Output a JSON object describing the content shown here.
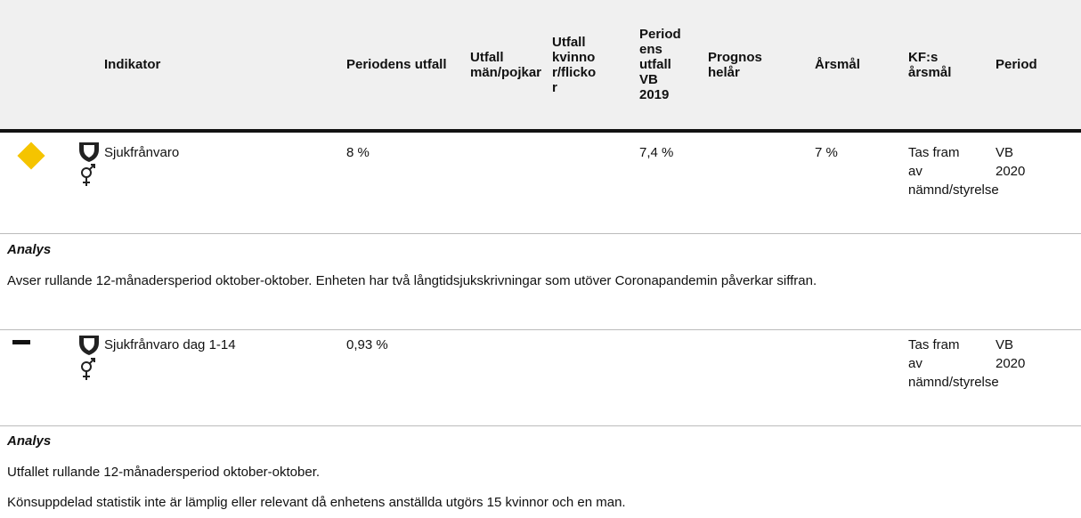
{
  "header": {
    "columns": [
      "Indikator",
      "Periodens utfall",
      "Utfall män/pojkar",
      "Utfall kvinnor/flickor",
      "Periodens utfall VB 2019",
      "Prognos helår",
      "Årsmål",
      "KF:s årsmål",
      "Period"
    ]
  },
  "rows": [
    {
      "indikator": "Sjukfrånvaro",
      "periodens_utfall": "8 %",
      "utfall_vb_2019": "7,4 %",
      "arsmal": "7 %",
      "kf_arsmal": "Tas fram av nämnd/styrelse",
      "period": "VB 2020",
      "analys": {
        "title": "Analys",
        "paragraphs": [
          "Avser rullande 12-månadersperiod oktober-oktober. Enheten har två långtidsjukskrivningar som utöver Coronapandemin påverkar siffran."
        ]
      }
    },
    {
      "indikator": "Sjukfrånvaro dag 1-14",
      "periodens_utfall": "0,93 %",
      "kf_arsmal": "Tas fram av nämnd/styrelse",
      "period": "VB 2020",
      "analys": {
        "title": "Analys",
        "paragraphs": [
          "Utfallet rullande 12-månadersperiod oktober-oktober.",
          "Könsuppdelad statistik inte är lämplig eller relevant då enhetens anställda utgörs 15 kvinnor och en man."
        ]
      }
    }
  ]
}
